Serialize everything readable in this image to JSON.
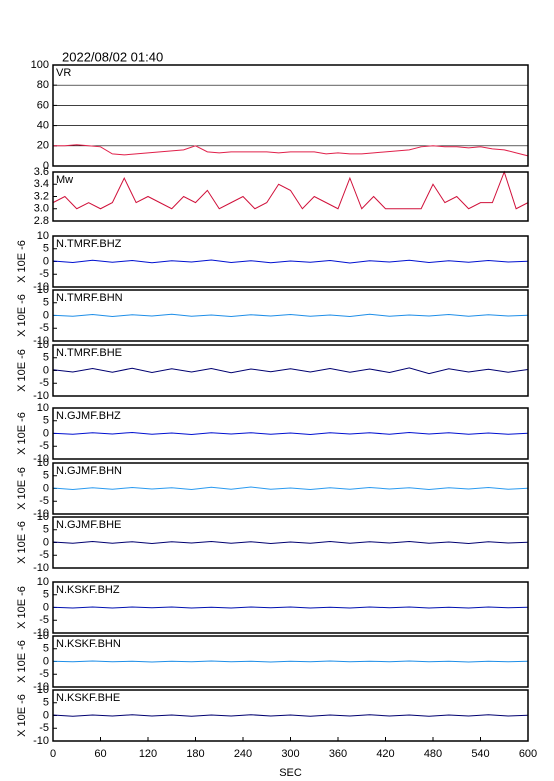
{
  "title": "2022/08/02 01:40",
  "chart_data": [
    {
      "type": "line",
      "title": "VR",
      "color": "#e0204a",
      "grid": true,
      "xlim": [
        0,
        600
      ],
      "ylim": [
        0,
        100
      ],
      "yticks": [
        0,
        20,
        40,
        60,
        80,
        100
      ],
      "x": [
        0,
        15,
        30,
        45,
        60,
        75,
        90,
        105,
        120,
        135,
        150,
        165,
        180,
        195,
        210,
        225,
        240,
        255,
        270,
        285,
        300,
        315,
        330,
        345,
        360,
        375,
        390,
        405,
        420,
        435,
        450,
        465,
        480,
        495,
        510,
        525,
        540,
        555,
        570,
        585,
        600
      ],
      "values": [
        20,
        20,
        21,
        20,
        19,
        12,
        11,
        12,
        13,
        14,
        15,
        16,
        20,
        14,
        13,
        14,
        14,
        14,
        14,
        13,
        14,
        14,
        14,
        12,
        13,
        12,
        12,
        13,
        14,
        15,
        16,
        19,
        20,
        19,
        19,
        18,
        19,
        17,
        16,
        13,
        10
      ]
    },
    {
      "type": "line",
      "title": "Mw",
      "color": "#d0103a",
      "grid": false,
      "xlim": [
        0,
        600
      ],
      "ylim": [
        2.8,
        3.6
      ],
      "yticks": [
        2.8,
        {
          "value": 3,
          "label": "3.0"
        },
        3.2,
        3.4,
        3.6
      ],
      "x": [
        0,
        15,
        30,
        45,
        60,
        75,
        90,
        105,
        120,
        135,
        150,
        165,
        180,
        195,
        210,
        225,
        240,
        255,
        270,
        285,
        300,
        315,
        330,
        345,
        360,
        375,
        390,
        405,
        420,
        435,
        450,
        465,
        480,
        495,
        510,
        525,
        540,
        555,
        570,
        585,
        600
      ],
      "values": [
        3.1,
        3.2,
        3.0,
        3.1,
        3.0,
        3.1,
        3.5,
        3.1,
        3.2,
        3.1,
        3.0,
        3.2,
        3.1,
        3.3,
        3.0,
        3.1,
        3.2,
        3.0,
        3.1,
        3.4,
        3.3,
        3.0,
        3.2,
        3.1,
        3.0,
        3.5,
        3.0,
        3.2,
        3.0,
        3.0,
        3.0,
        3.0,
        3.4,
        3.1,
        3.2,
        3.0,
        3.1,
        3.1,
        3.6,
        3.0,
        3.1
      ]
    },
    {
      "type": "line",
      "title": "N.TMRF.BHZ",
      "y_label": "X 10E -6",
      "color": "#0010d0",
      "xlim": [
        0,
        600
      ],
      "ylim": [
        -10,
        10
      ],
      "yticks": [
        -10,
        -5,
        0,
        5,
        10
      ],
      "x": [
        0,
        25,
        50,
        75,
        100,
        125,
        150,
        175,
        200,
        225,
        250,
        275,
        300,
        325,
        350,
        375,
        400,
        425,
        450,
        475,
        500,
        525,
        550,
        575,
        600
      ],
      "values": [
        0.2,
        -0.4,
        0.5,
        -0.3,
        0.4,
        -0.5,
        0.3,
        -0.2,
        0.6,
        -0.4,
        0.3,
        -0.5,
        0.2,
        -0.3,
        0.4,
        -0.6,
        0.3,
        -0.2,
        0.5,
        -0.4,
        0.3,
        -0.3,
        0.4,
        -0.2,
        0.1
      ]
    },
    {
      "type": "line",
      "title": "N.TMRF.BHN",
      "y_label": "X 10E -6",
      "color": "#1e8ee8",
      "xlim": [
        0,
        600
      ],
      "ylim": [
        -10,
        10
      ],
      "yticks": [
        -10,
        -5,
        0,
        5,
        10
      ],
      "x": [
        0,
        25,
        50,
        75,
        100,
        125,
        150,
        175,
        200,
        225,
        250,
        275,
        300,
        325,
        350,
        375,
        400,
        425,
        450,
        475,
        500,
        525,
        550,
        575,
        600
      ],
      "values": [
        0.1,
        -0.3,
        0.4,
        -0.4,
        0.3,
        -0.2,
        0.5,
        -0.3,
        0.2,
        -0.4,
        0.3,
        -0.2,
        0.4,
        -0.3,
        0.2,
        -0.4,
        0.5,
        -0.3,
        0.2,
        -0.2,
        0.4,
        -0.3,
        0.3,
        -0.2,
        0.1
      ]
    },
    {
      "type": "line",
      "title": "N.TMRF.BHE",
      "y_label": "X 10E -6",
      "color": "#000070",
      "xlim": [
        0,
        600
      ],
      "ylim": [
        -10,
        10
      ],
      "yticks": [
        -10,
        -5,
        0,
        5,
        10
      ],
      "x": [
        0,
        25,
        50,
        75,
        100,
        125,
        150,
        175,
        200,
        225,
        250,
        275,
        300,
        325,
        350,
        375,
        400,
        425,
        450,
        475,
        500,
        525,
        550,
        575,
        600
      ],
      "values": [
        0.3,
        -0.6,
        0.8,
        -0.7,
        0.9,
        -0.8,
        0.7,
        -0.6,
        0.8,
        -0.9,
        0.6,
        -0.5,
        0.7,
        -0.6,
        0.8,
        -0.7,
        0.6,
        -0.8,
        1.0,
        -1.2,
        0.7,
        -0.6,
        0.5,
        -0.7,
        0.4
      ]
    },
    {
      "type": "line",
      "title": "N.GJMF.BHZ",
      "y_label": "X 10E -6",
      "color": "#0010d0",
      "xlim": [
        0,
        600
      ],
      "ylim": [
        -10,
        10
      ],
      "yticks": [
        -10,
        -5,
        0,
        5,
        10
      ],
      "x": [
        0,
        25,
        50,
        75,
        100,
        125,
        150,
        175,
        200,
        225,
        250,
        275,
        300,
        325,
        350,
        375,
        400,
        425,
        450,
        475,
        500,
        525,
        550,
        575,
        600
      ],
      "values": [
        0.1,
        -0.3,
        0.3,
        -0.2,
        0.4,
        -0.3,
        0.2,
        -0.4,
        0.3,
        -0.2,
        0.3,
        -0.3,
        0.2,
        -0.4,
        0.3,
        -0.2,
        0.3,
        -0.3,
        0.4,
        -0.2,
        0.3,
        -0.3,
        0.2,
        -0.3,
        0.1
      ]
    },
    {
      "type": "line",
      "title": "N.GJMF.BHN",
      "y_label": "X 10E -6",
      "color": "#2a9af0",
      "xlim": [
        0,
        600
      ],
      "ylim": [
        -10,
        10
      ],
      "yticks": [
        -10,
        -5,
        0,
        5,
        10
      ],
      "x": [
        0,
        25,
        50,
        75,
        100,
        125,
        150,
        175,
        200,
        225,
        250,
        275,
        300,
        325,
        350,
        375,
        400,
        425,
        450,
        475,
        500,
        525,
        550,
        575,
        600
      ],
      "values": [
        0.2,
        -0.4,
        0.3,
        -0.3,
        0.4,
        -0.2,
        0.3,
        -0.4,
        0.5,
        -0.3,
        0.6,
        -0.3,
        0.2,
        -0.4,
        0.3,
        -0.3,
        0.4,
        -0.2,
        0.3,
        -0.4,
        0.3,
        -0.2,
        0.4,
        -0.3,
        0.1
      ]
    },
    {
      "type": "line",
      "title": "N.GJMF.BHE",
      "y_label": "X 10E -6",
      "color": "#000070",
      "xlim": [
        0,
        600
      ],
      "ylim": [
        -10,
        10
      ],
      "yticks": [
        -10,
        -5,
        0,
        5,
        10
      ],
      "x": [
        0,
        25,
        50,
        75,
        100,
        125,
        150,
        175,
        200,
        225,
        250,
        275,
        300,
        325,
        350,
        375,
        400,
        425,
        450,
        475,
        500,
        525,
        550,
        575,
        600
      ],
      "values": [
        0.2,
        -0.3,
        0.4,
        -0.3,
        0.3,
        -0.4,
        0.3,
        -0.2,
        0.4,
        -0.3,
        0.3,
        -0.4,
        0.2,
        -0.3,
        0.4,
        -0.3,
        0.3,
        -0.2,
        0.4,
        -0.3,
        0.2,
        -0.4,
        0.3,
        -0.2,
        0.1
      ]
    },
    {
      "type": "line",
      "title": "N.KSKF.BHZ",
      "y_label": "X 10E -6",
      "color": "#0010b0",
      "xlim": [
        0,
        600
      ],
      "ylim": [
        -10,
        10
      ],
      "yticks": [
        -10,
        -5,
        0,
        5,
        10
      ],
      "x": [
        0,
        25,
        50,
        75,
        100,
        125,
        150,
        175,
        200,
        225,
        250,
        275,
        300,
        325,
        350,
        375,
        400,
        425,
        450,
        475,
        500,
        525,
        550,
        575,
        600
      ],
      "values": [
        0.1,
        -0.2,
        0.2,
        -0.2,
        0.2,
        -0.1,
        0.2,
        -0.2,
        0.1,
        -0.2,
        0.2,
        -0.1,
        0.2,
        -0.2,
        0.1,
        -0.2,
        0.2,
        -0.1,
        0.2,
        -0.2,
        0.1,
        -0.2,
        0.2,
        -0.1,
        0.1
      ]
    },
    {
      "type": "line",
      "title": "N.KSKF.BHN",
      "y_label": "X 10E -6",
      "color": "#1e8ee8",
      "xlim": [
        0,
        600
      ],
      "ylim": [
        -10,
        10
      ],
      "yticks": [
        -10,
        -5,
        0,
        5,
        10
      ],
      "x": [
        0,
        25,
        50,
        75,
        100,
        125,
        150,
        175,
        200,
        225,
        250,
        275,
        300,
        325,
        350,
        375,
        400,
        425,
        450,
        475,
        500,
        525,
        550,
        575,
        600
      ],
      "values": [
        0.1,
        -0.1,
        0.2,
        -0.1,
        0.1,
        -0.2,
        0.1,
        -0.1,
        0.2,
        -0.1,
        0.1,
        -0.2,
        0.1,
        -0.1,
        0.2,
        -0.1,
        0.1,
        -0.1,
        0.2,
        -0.1,
        0.1,
        -0.2,
        0.1,
        -0.1,
        0.1
      ]
    },
    {
      "type": "line",
      "title": "N.KSKF.BHE",
      "y_label": "X 10E -6",
      "color": "#000070",
      "xlim": [
        0,
        600
      ],
      "ylim": [
        -10,
        10
      ],
      "yticks": [
        -10,
        -5,
        0,
        5,
        10
      ],
      "x": [
        0,
        25,
        50,
        75,
        100,
        125,
        150,
        175,
        200,
        225,
        250,
        275,
        300,
        325,
        350,
        375,
        400,
        425,
        450,
        475,
        500,
        525,
        550,
        575,
        600
      ],
      "values": [
        0.2,
        -0.3,
        0.2,
        -0.2,
        0.3,
        -0.2,
        0.2,
        -0.3,
        0.2,
        -0.2,
        0.3,
        -0.2,
        0.2,
        -0.3,
        0.2,
        -0.2,
        0.3,
        -0.2,
        0.2,
        -0.3,
        0.2,
        -0.2,
        0.3,
        -0.2,
        0.1
      ],
      "xticks": [
        0,
        60,
        120,
        180,
        240,
        300,
        360,
        420,
        480,
        540,
        600
      ],
      "xlabel": "SEC"
    }
  ]
}
